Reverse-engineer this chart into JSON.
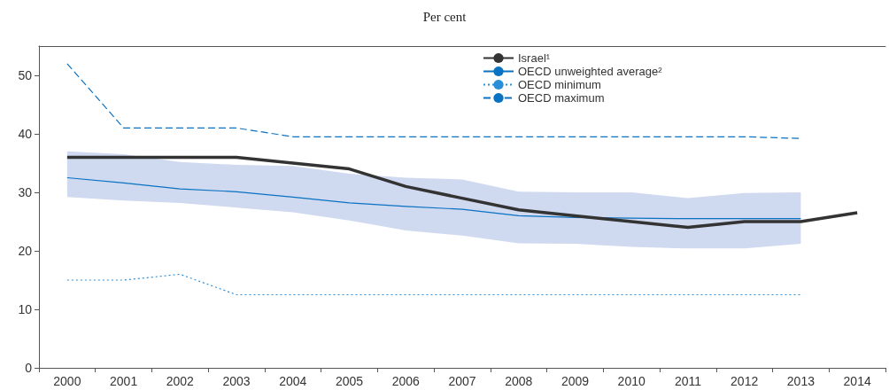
{
  "chart_data": {
    "type": "line",
    "subtitle": "Per cent",
    "categories": [
      "2000",
      "2001",
      "2002",
      "2003",
      "2004",
      "2005",
      "2006",
      "2007",
      "2008",
      "2009",
      "2010",
      "2011",
      "2012",
      "2013",
      "2014"
    ],
    "series": [
      {
        "name": "Israel¹",
        "color": "#333333",
        "line_style": "solid",
        "values": [
          36,
          36,
          36,
          36,
          35,
          34,
          31,
          29,
          27,
          26,
          25,
          24,
          25,
          25,
          26.5
        ]
      },
      {
        "name": "OECD unweighted average²",
        "color": "#0a72c2",
        "line_style": "solid",
        "values": [
          32.5,
          31.6,
          30.6,
          30.1,
          29.2,
          28.2,
          27.6,
          27.1,
          26,
          25.7,
          25.6,
          25.5,
          25.5,
          25.5,
          null
        ],
        "lower": [
          29.2,
          28.6,
          28.2,
          27.4,
          26.6,
          25.2,
          23.5,
          22.6,
          21.3,
          21.2,
          20.7,
          20.4,
          20.4,
          21.2,
          null
        ],
        "upper": [
          37,
          36.5,
          35.2,
          34.7,
          34.5,
          33.2,
          32.5,
          32.2,
          30.1,
          30,
          30,
          29,
          29.9,
          30,
          null
        ]
      },
      {
        "name": "OECD minimum",
        "color": "#2a8fd8",
        "line_style": "dotted",
        "values": [
          15,
          15,
          16,
          12.5,
          12.5,
          12.5,
          12.5,
          12.5,
          12.5,
          12.5,
          12.5,
          12.5,
          12.5,
          12.5,
          null
        ]
      },
      {
        "name": "OECD maximum",
        "color": "#0a72c2",
        "line_style": "dashed",
        "values": [
          52,
          41,
          41,
          41,
          39.5,
          39.5,
          39.5,
          39.5,
          39.5,
          39.5,
          39.5,
          39.5,
          39.5,
          39.2,
          null
        ]
      }
    ],
    "ylim": [
      0,
      55
    ],
    "yticks": [
      0,
      10,
      20,
      30,
      40,
      50
    ],
    "grid": false,
    "legend": "top right",
    "marker": "none"
  }
}
